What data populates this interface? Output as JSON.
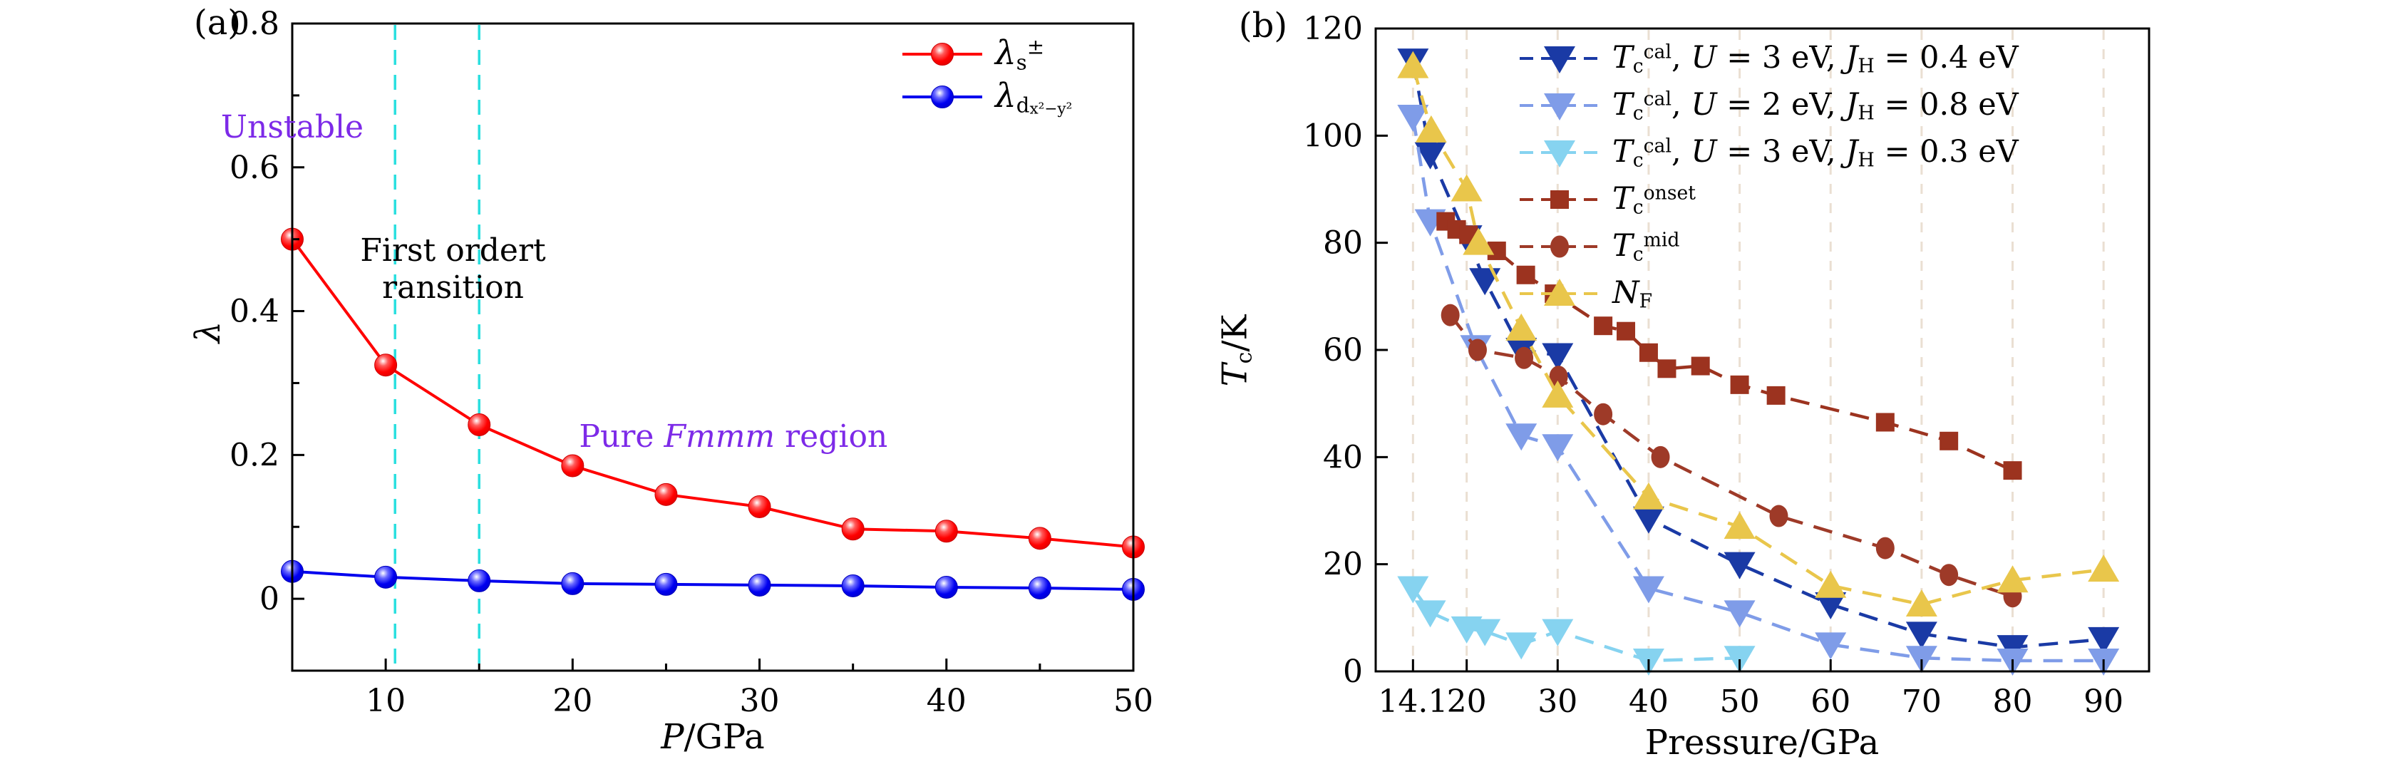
{
  "figure": {
    "background": "#ffffff"
  },
  "chart_data": [
    {
      "id": "panel-a",
      "panel_label": "(a)",
      "type": "line",
      "xlabel_parts": [
        {
          "t": "P",
          "style": "italic"
        },
        {
          "t": "/GPa"
        }
      ],
      "ylabel_parts": [
        {
          "t": "λ",
          "style": "italic"
        }
      ],
      "xlim": [
        5,
        50
      ],
      "ylim": [
        -0.1,
        0.8
      ],
      "xticks": [
        {
          "v": 10,
          "label": "10"
        },
        {
          "v": 20,
          "label": "20"
        },
        {
          "v": 30,
          "label": "30"
        },
        {
          "v": 40,
          "label": "40"
        },
        {
          "v": 50,
          "label": "50"
        }
      ],
      "xminor": [
        15,
        25,
        35,
        45
      ],
      "yticks": [
        {
          "v": 0,
          "label": "0"
        },
        {
          "v": 0.2,
          "label": "0.2"
        },
        {
          "v": 0.4,
          "label": "0.4"
        },
        {
          "v": 0.6,
          "label": "0.6"
        },
        {
          "v": 0.8,
          "label": "0.8"
        }
      ],
      "yminor": [
        0.1,
        0.3,
        0.5,
        0.7
      ],
      "grid": false,
      "vlines": [
        {
          "x": 10.5,
          "color": "#2adfdf"
        },
        {
          "x": 15,
          "color": "#2adfdf"
        }
      ],
      "annotations": [
        {
          "name": "unstable-label",
          "x": 5,
          "y": 0.655,
          "color": "#7d2ae8",
          "font": 44,
          "lines": [
            [
              {
                "t": "Unstable"
              }
            ]
          ]
        },
        {
          "name": "first-order-transition-label",
          "x": 13.6,
          "y": 0.458,
          "color": "#000000",
          "font": 44,
          "lines": [
            [
              {
                "t": "First ordert"
              }
            ],
            [
              {
                "t": "ransition"
              }
            ]
          ]
        },
        {
          "name": "pure-fmmm-region-label",
          "x": 28.6,
          "y": 0.225,
          "color": "#7d2ae8",
          "font": 44,
          "lines": [
            [
              {
                "t": "Pure "
              },
              {
                "t": "Fmmm",
                "style": "italic"
              },
              {
                "t": " region"
              }
            ]
          ]
        }
      ],
      "legend": {
        "entries": [
          {
            "series": 0,
            "label_parts": [
              {
                "t": "λ",
                "style": "italic"
              },
              {
                "t": "s",
                "style": "sub"
              },
              {
                "t": "±",
                "style": "sup"
              }
            ]
          },
          {
            "series": 1,
            "label_parts": [
              {
                "t": "λ",
                "style": "italic"
              },
              {
                "t": "d",
                "style": "sub"
              },
              {
                "t": "x²−y²",
                "style": "subsub"
              }
            ]
          }
        ]
      },
      "series": [
        {
          "name": "lambda-s-plus-minus",
          "color": "#ff0000",
          "edge": "#cc0000",
          "gradient": "grad-red",
          "marker": "circle",
          "line": "solid",
          "points": [
            [
              5,
              0.5
            ],
            [
              10,
              0.325
            ],
            [
              15,
              0.242
            ],
            [
              20,
              0.185
            ],
            [
              25,
              0.145
            ],
            [
              30,
              0.128
            ],
            [
              35,
              0.097
            ],
            [
              40,
              0.094
            ],
            [
              45,
              0.084
            ],
            [
              50,
              0.072
            ]
          ]
        },
        {
          "name": "lambda-d-x2-y2",
          "color": "#0000ee",
          "edge": "#0000bb",
          "gradient": "grad-blue",
          "marker": "circle",
          "line": "solid",
          "points": [
            [
              5,
              0.038
            ],
            [
              10,
              0.03
            ],
            [
              15,
              0.025
            ],
            [
              20,
              0.021
            ],
            [
              25,
              0.02
            ],
            [
              30,
              0.019
            ],
            [
              35,
              0.018
            ],
            [
              40,
              0.016
            ],
            [
              45,
              0.015
            ],
            [
              50,
              0.013
            ]
          ]
        }
      ]
    },
    {
      "id": "panel-b",
      "panel_label": "(b)",
      "type": "line",
      "xlabel_parts": [
        {
          "t": "Pressure/GPa"
        }
      ],
      "ylabel_parts": [
        {
          "t": "T",
          "style": "italic"
        },
        {
          "t": "c",
          "style": "sub"
        },
        {
          "t": "/K"
        }
      ],
      "xlim": [
        10,
        95
      ],
      "ylim": [
        0,
        120
      ],
      "xticks": [
        {
          "v": 14.1,
          "label": "14.1"
        },
        {
          "v": 20,
          "label": "20"
        },
        {
          "v": 30,
          "label": "30"
        },
        {
          "v": 40,
          "label": "40"
        },
        {
          "v": 50,
          "label": "50"
        },
        {
          "v": 60,
          "label": "60"
        },
        {
          "v": 70,
          "label": "70"
        },
        {
          "v": 80,
          "label": "80"
        },
        {
          "v": 90,
          "label": "90"
        }
      ],
      "xminor": [],
      "yticks": [
        {
          "v": 0,
          "label": "0"
        },
        {
          "v": 20,
          "label": "20"
        },
        {
          "v": 40,
          "label": "40"
        },
        {
          "v": 60,
          "label": "60"
        },
        {
          "v": 80,
          "label": "80"
        },
        {
          "v": 100,
          "label": "100"
        },
        {
          "v": 120,
          "label": "120"
        }
      ],
      "yminor": [],
      "grid": true,
      "grid_color": "#eadfd2",
      "vlines": [],
      "annotations": [],
      "legend": {
        "entries": [
          {
            "series": 0,
            "label_parts": [
              {
                "t": "T",
                "style": "italic"
              },
              {
                "t": "c",
                "style": "sub"
              },
              {
                "t": "cal",
                "style": "sup"
              },
              {
                "t": ", "
              },
              {
                "t": "U",
                "style": "italic"
              },
              {
                "t": " = 3 eV, "
              },
              {
                "t": "J",
                "style": "italic"
              },
              {
                "t": "H",
                "style": "sub"
              },
              {
                "t": " = 0.4 eV"
              }
            ]
          },
          {
            "series": 1,
            "label_parts": [
              {
                "t": "T",
                "style": "italic"
              },
              {
                "t": "c",
                "style": "sub"
              },
              {
                "t": "cal",
                "style": "sup"
              },
              {
                "t": ", "
              },
              {
                "t": "U",
                "style": "italic"
              },
              {
                "t": " = 2 eV, "
              },
              {
                "t": "J",
                "style": "italic"
              },
              {
                "t": "H",
                "style": "sub"
              },
              {
                "t": " = 0.8 eV"
              }
            ]
          },
          {
            "series": 2,
            "label_parts": [
              {
                "t": "T",
                "style": "italic"
              },
              {
                "t": "c",
                "style": "sub"
              },
              {
                "t": "cal",
                "style": "sup"
              },
              {
                "t": ", "
              },
              {
                "t": "U",
                "style": "italic"
              },
              {
                "t": " = 3 eV, "
              },
              {
                "t": "J",
                "style": "italic"
              },
              {
                "t": "H",
                "style": "sub"
              },
              {
                "t": " = 0.3 eV"
              }
            ]
          },
          {
            "series": 3,
            "label_parts": [
              {
                "t": "T",
                "style": "italic"
              },
              {
                "t": "c",
                "style": "sub"
              },
              {
                "t": "onset",
                "style": "sup"
              }
            ]
          },
          {
            "series": 4,
            "label_parts": [
              {
                "t": "T",
                "style": "italic"
              },
              {
                "t": "c",
                "style": "sub"
              },
              {
                "t": "mid",
                "style": "sup"
              }
            ]
          },
          {
            "series": 5,
            "label_parts": [
              {
                "t": "N",
                "style": "italic"
              },
              {
                "t": "F",
                "style": "sub"
              }
            ]
          }
        ]
      },
      "series": [
        {
          "name": "tc-cal-u3-jh04",
          "color": "#1a3aa5",
          "marker": "tri-down",
          "line": "dashed",
          "points": [
            [
              14.1,
              114
            ],
            [
              16,
              96.5
            ],
            [
              20,
              81
            ],
            [
              22,
              73
            ],
            [
              26,
              60
            ],
            [
              30,
              59
            ],
            [
              40,
              28.5
            ],
            [
              50,
              20
            ],
            [
              60,
              12.5
            ],
            [
              70,
              7
            ],
            [
              80,
              4.5
            ],
            [
              90,
              6
            ]
          ]
        },
        {
          "name": "tc-cal-u2-jh08",
          "color": "#7f9ce8",
          "marker": "tri-down",
          "line": "dashed",
          "points": [
            [
              14.1,
              103.5
            ],
            [
              16,
              84
            ],
            [
              21,
              60.5
            ],
            [
              26,
              44
            ],
            [
              30,
              42
            ],
            [
              40,
              15.5
            ],
            [
              50,
              11
            ],
            [
              60,
              5
            ],
            [
              70,
              2.5
            ],
            [
              80,
              2
            ],
            [
              90,
              2
            ]
          ]
        },
        {
          "name": "tc-cal-u3-jh03",
          "color": "#86d3f0",
          "marker": "tri-down",
          "line": "dashed",
          "points": [
            [
              14.1,
              15.5
            ],
            [
              16,
              11
            ],
            [
              20,
              8
            ],
            [
              22,
              7.5
            ],
            [
              26,
              5
            ],
            [
              30,
              7.5
            ],
            [
              40,
              2
            ],
            [
              50,
              2.5
            ]
          ]
        },
        {
          "name": "tc-onset",
          "color": "#9c331f",
          "marker": "square",
          "line": "dashed",
          "points": [
            [
              17.7,
              84
            ],
            [
              18.9,
              82.5
            ],
            [
              20.2,
              81.5
            ],
            [
              23.3,
              78.5
            ],
            [
              26.5,
              74
            ],
            [
              29.6,
              70.5
            ],
            [
              35,
              64.5
            ],
            [
              37.5,
              63.5
            ],
            [
              40,
              59.5
            ],
            [
              42,
              56.5
            ],
            [
              45.7,
              57
            ],
            [
              50,
              53.5
            ],
            [
              54,
              51.5
            ],
            [
              66,
              46.5
            ],
            [
              73,
              43
            ],
            [
              80,
              37.5
            ]
          ]
        },
        {
          "name": "tc-mid",
          "color": "#9e3a28",
          "marker": "dot",
          "line": "dashed",
          "points": [
            [
              18.2,
              66.5
            ],
            [
              21.2,
              60
            ],
            [
              26.3,
              58.5
            ],
            [
              30.1,
              55
            ],
            [
              35,
              48
            ],
            [
              41.3,
              40
            ],
            [
              54.3,
              29
            ],
            [
              66,
              23
            ],
            [
              73,
              18
            ],
            [
              80,
              14
            ]
          ]
        },
        {
          "name": "n-f",
          "color": "#e9c64b",
          "marker": "tri-up",
          "line": "dashed",
          "points": [
            [
              14.1,
              113
            ],
            [
              16.1,
              101
            ],
            [
              20,
              90
            ],
            [
              21.3,
              80
            ],
            [
              26,
              64
            ],
            [
              30,
              51.5
            ],
            [
              40,
              32.5
            ],
            [
              50,
              27
            ],
            [
              60,
              16
            ],
            [
              70,
              12.5
            ],
            [
              80,
              17
            ],
            [
              90,
              19
            ]
          ]
        }
      ]
    }
  ]
}
